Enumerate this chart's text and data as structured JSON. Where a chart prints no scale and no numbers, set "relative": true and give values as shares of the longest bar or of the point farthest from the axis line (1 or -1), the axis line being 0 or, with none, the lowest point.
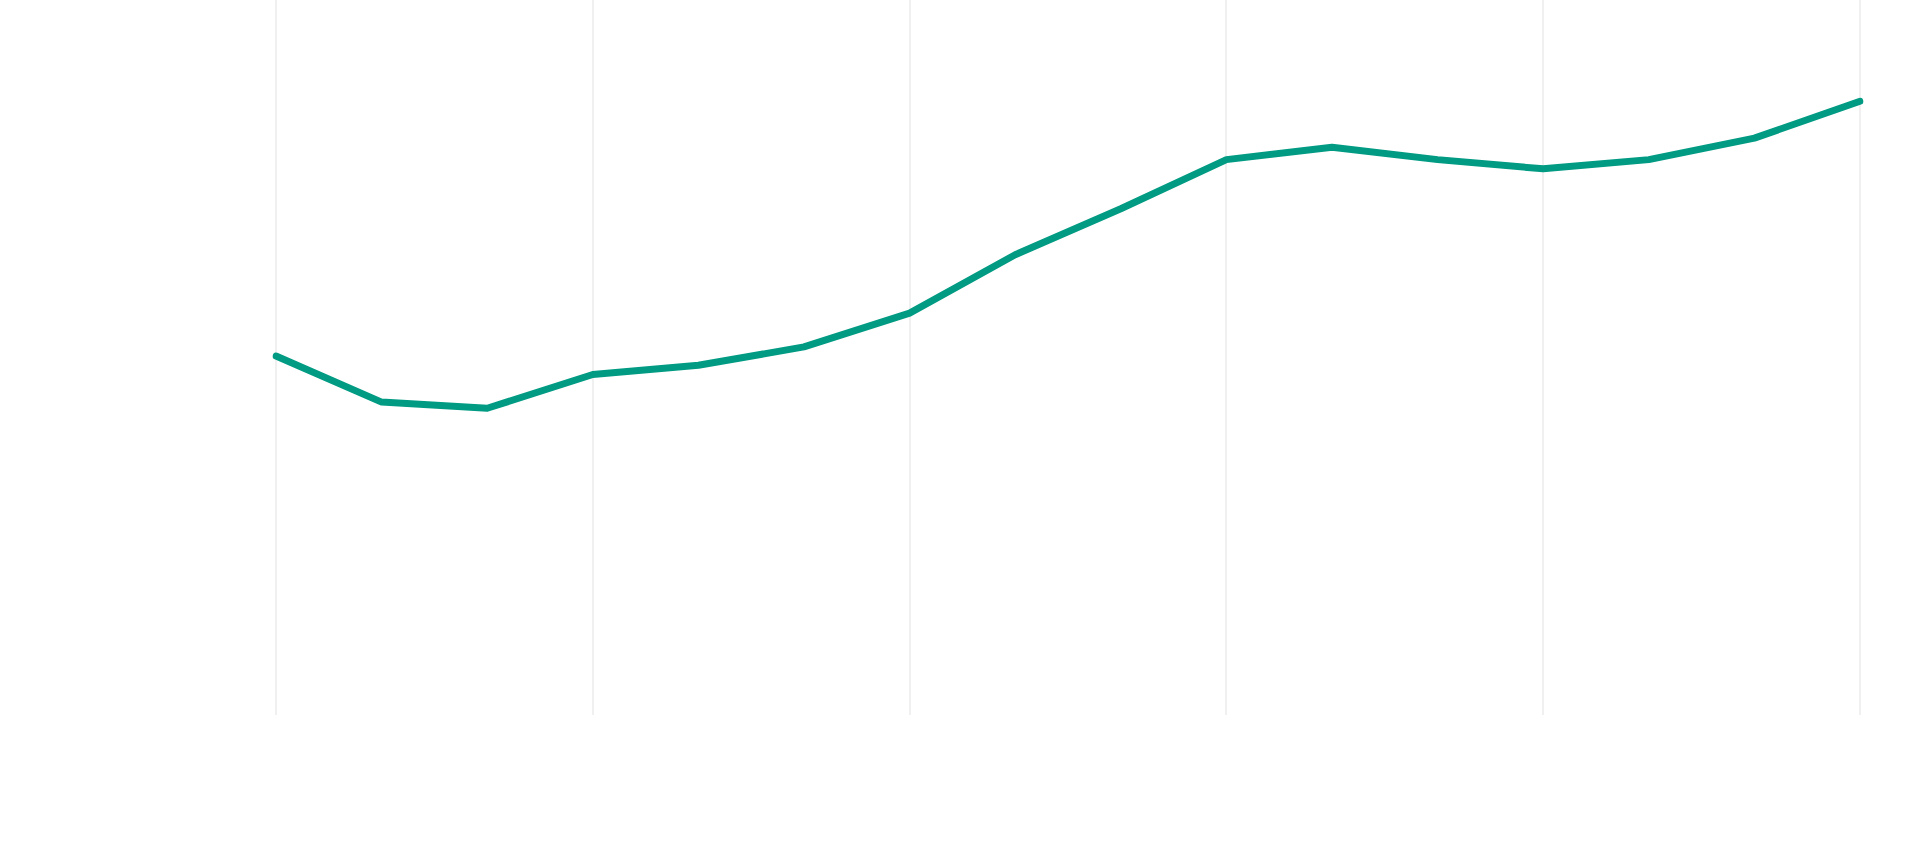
{
  "chart_data": {
    "type": "line",
    "relative": true,
    "categories": [
      null,
      null,
      null,
      null,
      null,
      null,
      null,
      null,
      null,
      null,
      null,
      null,
      null,
      null,
      null,
      null
    ],
    "grid": "x",
    "legend": false,
    "marker": "none",
    "line_style": "solid",
    "series": [
      {
        "color": "#009b82",
        "values": [
          0.17,
          0.02,
          0,
          0.11,
          0.14,
          0.2,
          0.31,
          0.5,
          0.65,
          0.81,
          0.85,
          0.81,
          0.78,
          0.81,
          0.88,
          1
        ]
      }
    ]
  }
}
